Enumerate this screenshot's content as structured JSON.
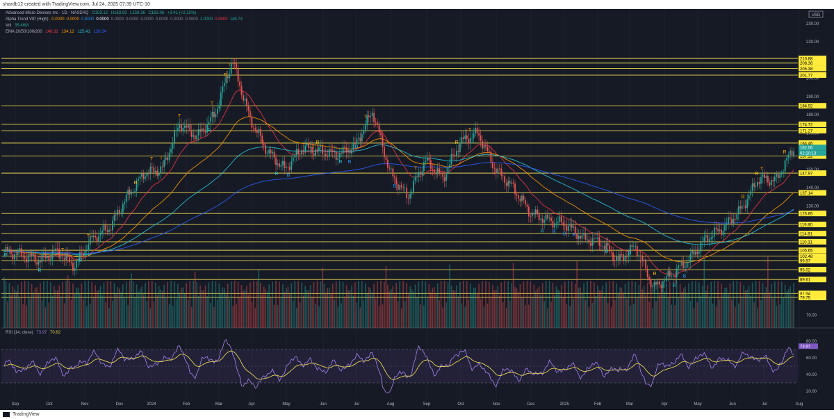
{
  "header": {
    "created_by": "shardb12 created with TradingView.com, Jul 24, 2025 07:39 UTC-10"
  },
  "footer": {
    "brand": "TradingView"
  },
  "legend": {
    "symbol_line": {
      "symbol": "Advanced Micro Devices Inc · 1D · NASDAQ",
      "o": "O159.12",
      "h": "H163.93",
      "l": "L158.36",
      "c": "C162.06",
      "chg": "+3.41 (+2.15%)"
    },
    "alpha_trend": {
      "name": "Alpha Trend VIP (High)",
      "values": [
        "0.0000",
        "0.0000",
        "0.0000",
        "0.0000",
        "0.0000",
        "0.0000",
        "0.0000",
        "0.0000",
        "0.0000",
        "0.0000",
        "1.0000",
        "0.0000",
        "148.74"
      ]
    },
    "vol": {
      "name": "Vol",
      "value": "35.46M"
    },
    "ema": {
      "name": "EMA 20/50/100/200",
      "values": [
        "148.32",
        "134.12",
        "125.41",
        "126.54"
      ],
      "colors": [
        "#f23645",
        "#ff9800",
        "#26c6da",
        "#2962ff"
      ]
    }
  },
  "currency": "USD",
  "colors": {
    "bg": "#161a25",
    "up": "#26a69a",
    "down": "#ef5350",
    "level": "#e8d44d",
    "rsi": "#9c7cdf",
    "rsi_ma": "#e8d44d",
    "highlight": "#ffeb3b"
  },
  "chart_data": [
    {
      "type": "candlestick",
      "title": "Advanced Micro Devices Inc · 1D · NASDAQ",
      "x_tick_labels": [
        "Sep",
        "Oct",
        "Nov",
        "Dec",
        "2024",
        "Feb",
        "Mar",
        "Apr",
        "May",
        "Jun",
        "Jul",
        "Aug",
        "Sep",
        "Oct",
        "Nov",
        "Dec",
        "2025",
        "Feb",
        "Mar",
        "Apr",
        "May",
        "Jun",
        "Jul",
        "Aug"
      ],
      "y_tick_labels": [
        70,
        80,
        90,
        100,
        110,
        120,
        130,
        140,
        150,
        160,
        170,
        180,
        190,
        200,
        210,
        220,
        230
      ],
      "ylim": [
        63,
        238
      ],
      "horizontal_levels": [
        210.88,
        208.36,
        205.38,
        201.77,
        184.92,
        174.72,
        171.27,
        164.46,
        157.32,
        147.97,
        137.14,
        125.85,
        119.8,
        114.81,
        110.31,
        105.65,
        102.48,
        99.97,
        95.02,
        89.61,
        81.94,
        79.75
      ],
      "last_price": "162.06",
      "countdown": "02:20:13",
      "close_path": [
        [
          "Sep",
          105
        ],
        [
          "Sep",
          103
        ],
        [
          "Oct",
          100
        ],
        [
          "Oct",
          105
        ],
        [
          "Nov",
          97
        ],
        [
          "Nov",
          112
        ],
        [
          "Dec",
          118
        ],
        [
          "Dec",
          135
        ],
        [
          "2024",
          148
        ],
        [
          "2024",
          150
        ],
        [
          "Feb",
          175
        ],
        [
          "Feb",
          168
        ],
        [
          "Mar",
          180
        ],
        [
          "Mar",
          210
        ],
        [
          "Apr",
          178
        ],
        [
          "Apr",
          160
        ],
        [
          "May",
          150
        ],
        [
          "May",
          162
        ],
        [
          "Jun",
          160
        ],
        [
          "Jun",
          158
        ],
        [
          "Jul",
          163
        ],
        [
          "Jul",
          182
        ],
        [
          "Aug",
          148
        ],
        [
          "Aug",
          135
        ],
        [
          "Sep",
          155
        ],
        [
          "Sep",
          145
        ],
        [
          "Oct",
          165
        ],
        [
          "Oct",
          170
        ],
        [
          "Nov",
          150
        ],
        [
          "Nov",
          140
        ],
        [
          "Dec",
          126
        ],
        [
          "Dec",
          122
        ],
        [
          "2025",
          120
        ],
        [
          "Feb",
          112
        ],
        [
          "Feb",
          110
        ],
        [
          "Mar",
          100
        ],
        [
          "Mar",
          108
        ],
        [
          "Apr",
          85
        ],
        [
          "Apr",
          92
        ],
        [
          "May",
          100
        ],
        [
          "May",
          112
        ],
        [
          "Jun",
          118
        ],
        [
          "Jun",
          128
        ],
        [
          "Jul",
          145
        ],
        [
          "Jul",
          144
        ],
        [
          "Aug",
          162
        ]
      ],
      "signal_labels": [
        "T",
        "R",
        "B"
      ]
    },
    {
      "type": "line",
      "title": "RSI (14, close)",
      "series": [
        {
          "name": "RSI",
          "last": 73.97
        },
        {
          "name": "RSI MA",
          "last": 70.62
        }
      ],
      "y_tick_labels": [
        20,
        40,
        60,
        80
      ],
      "bands": [
        70,
        30
      ]
    }
  ],
  "rsi_label": {
    "name": "RSI (14, close)",
    "v1": "73.97",
    "v2": "70.62"
  }
}
